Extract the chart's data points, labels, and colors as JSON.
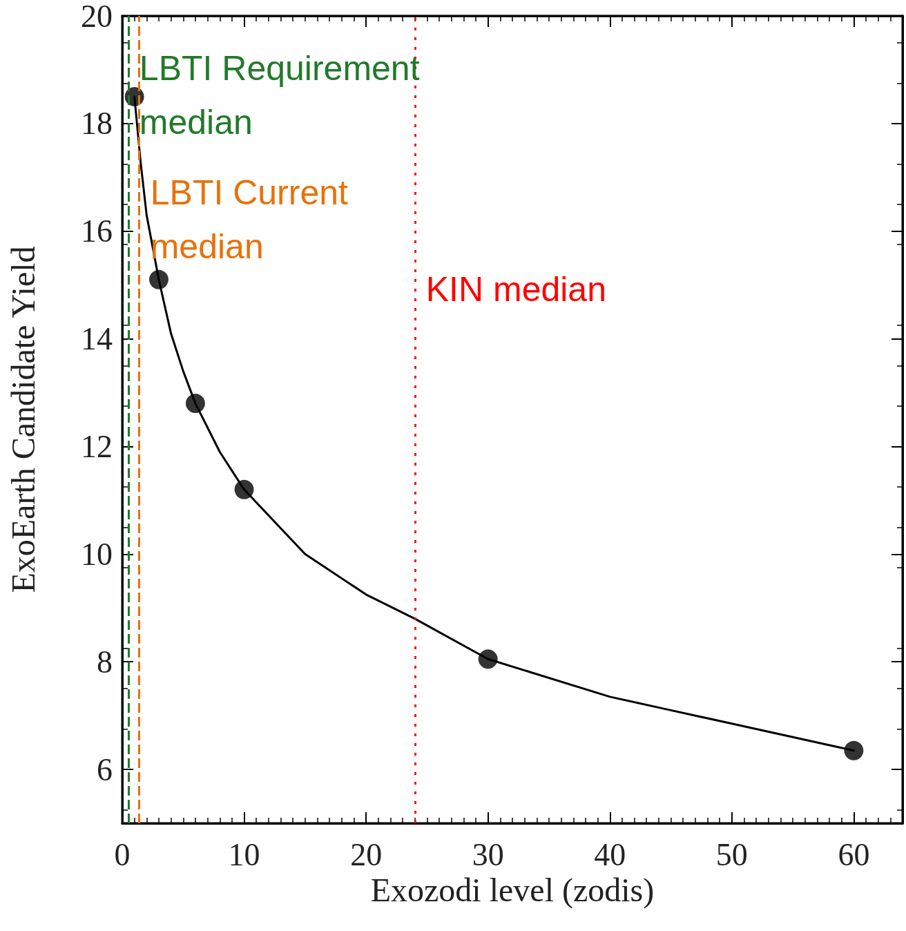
{
  "chart_data": {
    "type": "scatter",
    "xlabel": "Exozodi level (zodis)",
    "ylabel": "ExoEarth Candidate Yield",
    "xlim": [
      0,
      64
    ],
    "xticks": [
      0,
      10,
      20,
      30,
      40,
      50,
      60
    ],
    "ylim": [
      5,
      20
    ],
    "yticks": [
      6,
      8,
      10,
      12,
      14,
      16,
      18,
      20
    ],
    "grid": false,
    "series": [
      {
        "type": "line",
        "color": "#000000",
        "marker": "none",
        "line_style": "solid",
        "x": [
          1,
          1.5,
          2,
          3,
          4,
          5,
          6,
          8,
          10,
          15,
          20,
          24,
          30,
          40,
          45,
          50,
          60
        ],
        "values": [
          18.5,
          17.3,
          16.3,
          15.1,
          14.1,
          13.4,
          12.8,
          11.9,
          11.2,
          10.0,
          9.25,
          8.8,
          8.05,
          7.35,
          7.1,
          6.85,
          6.35
        ]
      },
      {
        "color": "#000000",
        "marker": "circle",
        "x": [
          1,
          3,
          6,
          10,
          30,
          60
        ],
        "values": [
          18.5,
          15.1,
          12.8,
          11.2,
          8.05,
          6.35
        ]
      }
    ],
    "ref_lines": [
      {
        "axis": "x",
        "value": 0.5,
        "label": "LBTI Requirement\nmedian",
        "color": "#217a2a",
        "line_style": "dashed"
      },
      {
        "axis": "x",
        "value": 1.4,
        "label": "LBTI Current\nmedian",
        "color": "#e8710a",
        "line_style": "dashed"
      },
      {
        "axis": "x",
        "value": 24,
        "label": "KIN median",
        "color": "#ff0000",
        "line_style": "dotted"
      }
    ]
  }
}
